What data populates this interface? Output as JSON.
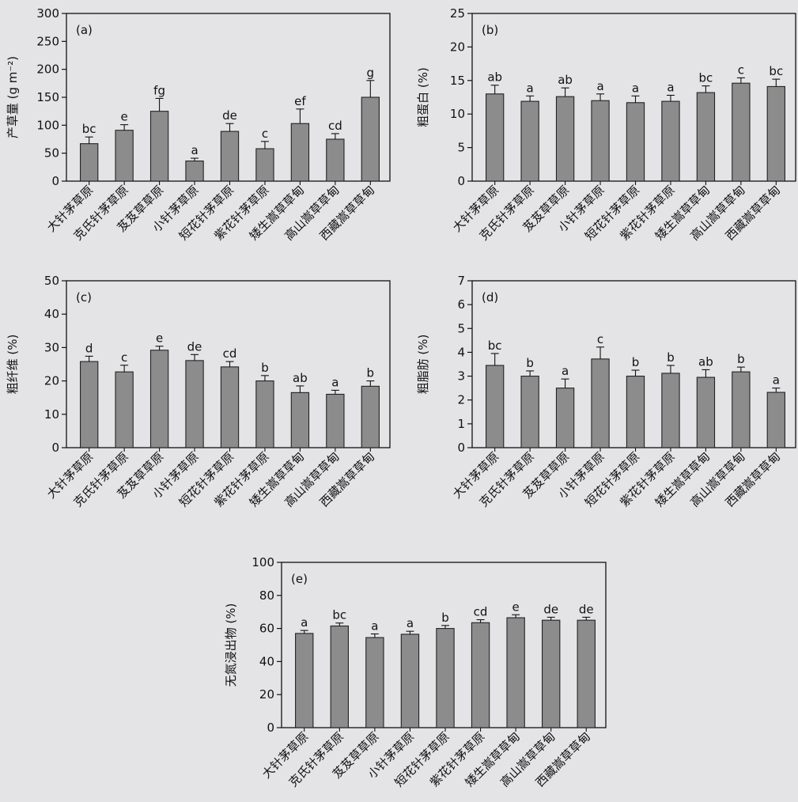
{
  "colors": {
    "background": "#e4e4e6",
    "bar_fill": "#8c8c8c",
    "bar_stroke": "#222222",
    "axis": "#111111"
  },
  "chart_data": [
    {
      "type": "bar",
      "panel": "(a)",
      "ylabel": "产草量 (g m⁻²)",
      "ylim": [
        0,
        300
      ],
      "yticks": [
        0,
        50,
        100,
        150,
        200,
        250,
        300
      ],
      "categories": [
        "大针茅草原",
        "克氏针茅草原",
        "芨芨草草原",
        "小针茅草原",
        "短花针茅草原",
        "紫花针茅草原",
        "矮生嵩草草甸",
        "高山嵩草草甸",
        "西藏嵩草草甸"
      ],
      "values": [
        67,
        91,
        125,
        36,
        89,
        58,
        103,
        75,
        150
      ],
      "errors": [
        12,
        10,
        23,
        5,
        14,
        13,
        26,
        10,
        30
      ],
      "letters": [
        "bc",
        "e",
        "fg",
        "a",
        "de",
        "c",
        "ef",
        "cd",
        "g"
      ]
    },
    {
      "type": "bar",
      "panel": "(b)",
      "ylabel": "粗蛋白 (%)",
      "ylim": [
        0,
        25
      ],
      "yticks": [
        0,
        5,
        10,
        15,
        20,
        25
      ],
      "categories": [
        "大针茅草原",
        "克氏针茅草原",
        "芨芨草草原",
        "小针茅草原",
        "短花针茅草原",
        "紫花针茅草原",
        "矮生嵩草草甸",
        "高山嵩草草甸",
        "西藏嵩草草甸"
      ],
      "values": [
        13.0,
        11.9,
        12.6,
        12.0,
        11.7,
        11.9,
        13.2,
        14.6,
        14.1
      ],
      "errors": [
        1.3,
        0.8,
        1.3,
        1.0,
        1.0,
        0.9,
        1.0,
        0.8,
        1.1
      ],
      "letters": [
        "ab",
        "a",
        "ab",
        "a",
        "a",
        "a",
        "bc",
        "c",
        "bc"
      ]
    },
    {
      "type": "bar",
      "panel": "(c)",
      "ylabel": "粗纤维 (%)",
      "ylim": [
        0,
        50
      ],
      "yticks": [
        0,
        10,
        20,
        30,
        40,
        50
      ],
      "categories": [
        "大针茅草原",
        "克氏针茅草原",
        "芨芨草草原",
        "小针茅草原",
        "短花针茅草原",
        "紫花针茅草原",
        "矮生嵩草草甸",
        "高山嵩草草甸",
        "西藏嵩草草甸"
      ],
      "values": [
        25.8,
        22.7,
        29.2,
        26.1,
        24.2,
        20.0,
        16.5,
        16.0,
        18.4
      ],
      "errors": [
        1.6,
        2.0,
        1.2,
        1.8,
        1.6,
        1.6,
        2.0,
        1.2,
        1.6
      ],
      "letters": [
        "d",
        "c",
        "e",
        "de",
        "cd",
        "b",
        "ab",
        "a",
        "b"
      ]
    },
    {
      "type": "bar",
      "panel": "(d)",
      "ylabel": "粗脂肪 (%)",
      "ylim": [
        0,
        7
      ],
      "yticks": [
        0,
        1,
        2,
        3,
        4,
        5,
        6,
        7
      ],
      "categories": [
        "大针茅草原",
        "克氏针茅草原",
        "芨芨草草原",
        "小针茅草原",
        "短花针茅草原",
        "紫花针茅草原",
        "矮生嵩草草甸",
        "高山嵩草草甸",
        "西藏嵩草草甸"
      ],
      "values": [
        3.45,
        3.0,
        2.5,
        3.72,
        3.0,
        3.12,
        2.95,
        3.18,
        2.32
      ],
      "errors": [
        0.5,
        0.22,
        0.38,
        0.5,
        0.25,
        0.33,
        0.32,
        0.2,
        0.18
      ],
      "letters": [
        "bc",
        "b",
        "a",
        "c",
        "b",
        "b",
        "ab",
        "b",
        "a"
      ]
    },
    {
      "type": "bar",
      "panel": "(e)",
      "ylabel": "无氮浸出物 (%)",
      "ylim": [
        0,
        100
      ],
      "yticks": [
        0,
        20,
        40,
        60,
        80,
        100
      ],
      "categories": [
        "大针茅草原",
        "克氏针茅草原",
        "芨芨草草原",
        "小针茅草原",
        "短花针茅草原",
        "紫花针茅草原",
        "矮生嵩草草甸",
        "高山嵩草草甸",
        "西藏嵩草草甸"
      ],
      "values": [
        57,
        61.5,
        54.5,
        56.5,
        60,
        63.5,
        66.5,
        65,
        65
      ],
      "errors": [
        1.8,
        1.8,
        2.2,
        1.8,
        1.8,
        1.8,
        1.8,
        1.8,
        1.8
      ],
      "letters": [
        "a",
        "bc",
        "a",
        "a",
        "b",
        "cd",
        "e",
        "de",
        "de"
      ]
    }
  ]
}
